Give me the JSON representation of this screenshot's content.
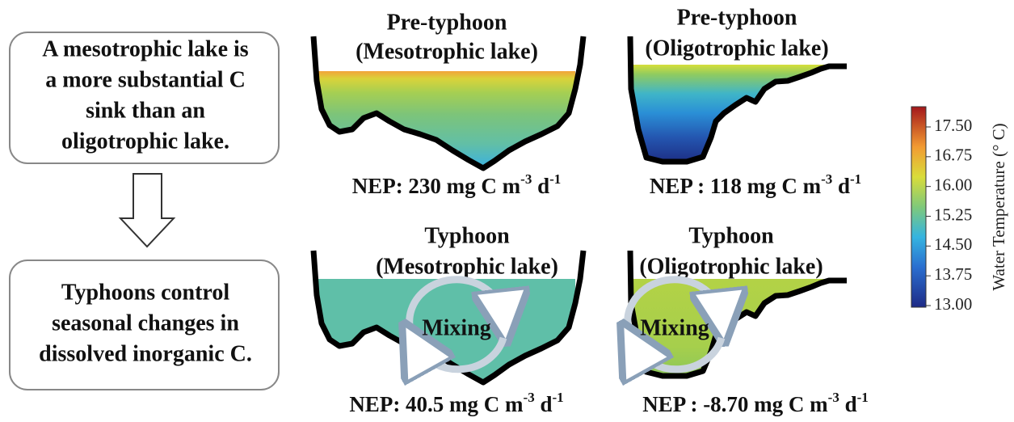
{
  "summary_box": {
    "lines": [
      "A mesotrophic lake is",
      "a more substantial C",
      "sink than an",
      "oligotrophic lake."
    ]
  },
  "conclusion_box": {
    "lines": [
      "Typhoons control",
      "seasonal changes in",
      "dissolved inorganic C."
    ]
  },
  "panels": [
    {
      "title": "Pre-typhoon",
      "subtitle": "(Mesotrophic lake)",
      "nep": {
        "text": "NEP: 230 mg C m",
        "exp1": "-3",
        "unit2": " d",
        "exp2": "-1"
      }
    },
    {
      "title": "Pre-typhoon",
      "subtitle": "(Oligotrophic lake)",
      "nep": {
        "text": "NEP : 118 mg C m",
        "exp1": "-3",
        "unit2": " d",
        "exp2": "-1"
      }
    },
    {
      "title": "Typhoon",
      "subtitle": "(Mesotrophic lake)",
      "mixing": "Mixing",
      "nep": {
        "text": "NEP:  40.5 mg C m",
        "exp1": "-3",
        "unit2": " d",
        "exp2": "-1"
      }
    },
    {
      "title": "Typhoon",
      "subtitle": "(Oligotrophic lake)",
      "mixing": "Mixing",
      "nep": {
        "text": "NEP : -8.70 mg C m",
        "exp1": "-3",
        "unit2": " d",
        "exp2": "-1"
      }
    }
  ],
  "colorbar": {
    "label": "Water Temperature (° C)",
    "ticks": [
      "17.50",
      "16.75",
      "16.00",
      "15.25",
      "14.50",
      "13.75",
      "13.00"
    ]
  }
}
